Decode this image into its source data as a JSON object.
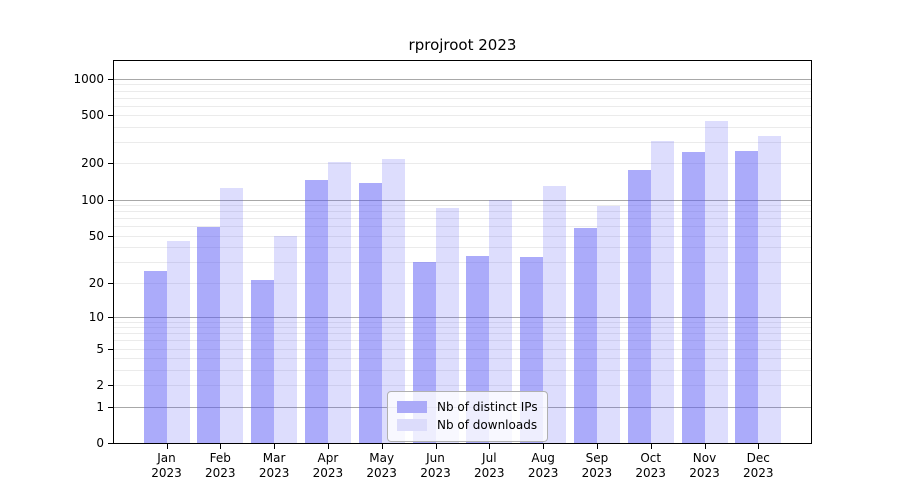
{
  "title": "rprojroot 2023",
  "colors": {
    "bar_ips": "rgba(87,87,245,0.5)",
    "bar_downloads": "rgba(87,87,245,0.2)",
    "legend_swatch_ips": "#abaaf8",
    "legend_swatch_downloads": "#dcdcfb",
    "grid_major": "#a8a8a8",
    "grid_minor": "#ebebeb",
    "axis": "#000000"
  },
  "legend": {
    "items": [
      {
        "label": "Nb of distinct IPs",
        "series": "ips"
      },
      {
        "label": "Nb of downloads",
        "series": "downloads"
      }
    ]
  },
  "chart_data": {
    "type": "bar",
    "title": "rprojroot 2023",
    "categories": [
      "Jan 2023",
      "Feb 2023",
      "Mar 2023",
      "Apr 2023",
      "May 2023",
      "Jun 2023",
      "Jul 2023",
      "Aug 2023",
      "Sep 2023",
      "Oct 2023",
      "Nov 2023",
      "Dec 2023"
    ],
    "x_tick_line1": [
      "Jan",
      "Feb",
      "Mar",
      "Apr",
      "May",
      "Jun",
      "Jul",
      "Aug",
      "Sep",
      "Oct",
      "Nov",
      "Dec"
    ],
    "x_tick_line2": [
      "2023",
      "2023",
      "2023",
      "2023",
      "2023",
      "2023",
      "2023",
      "2023",
      "2023",
      "2023",
      "2023",
      "2023"
    ],
    "series": [
      {
        "name": "Nb of distinct IPs",
        "key": "ips",
        "values": [
          25,
          59,
          21,
          147,
          138,
          30,
          34,
          33,
          58,
          175,
          250,
          255
        ]
      },
      {
        "name": "Nb of downloads",
        "key": "downloads",
        "values": [
          45,
          125,
          50,
          205,
          218,
          85,
          100,
          130,
          88,
          305,
          450,
          340
        ]
      }
    ],
    "xlabel": "",
    "ylabel": "",
    "yscale": "log1p",
    "ylim": [
      0,
      1400
    ],
    "y_ticks": [
      0,
      1,
      2,
      5,
      10,
      20,
      50,
      100,
      200,
      500,
      1000
    ],
    "grid_major_values": [
      1,
      10,
      100,
      1000
    ],
    "grid_minor_values": [
      2,
      3,
      4,
      5,
      6,
      7,
      8,
      9,
      20,
      30,
      40,
      50,
      60,
      70,
      80,
      90,
      200,
      300,
      400,
      500,
      600,
      700,
      800,
      900
    ],
    "grid": "horizontal",
    "legend_position": "inside-bottom-center"
  }
}
